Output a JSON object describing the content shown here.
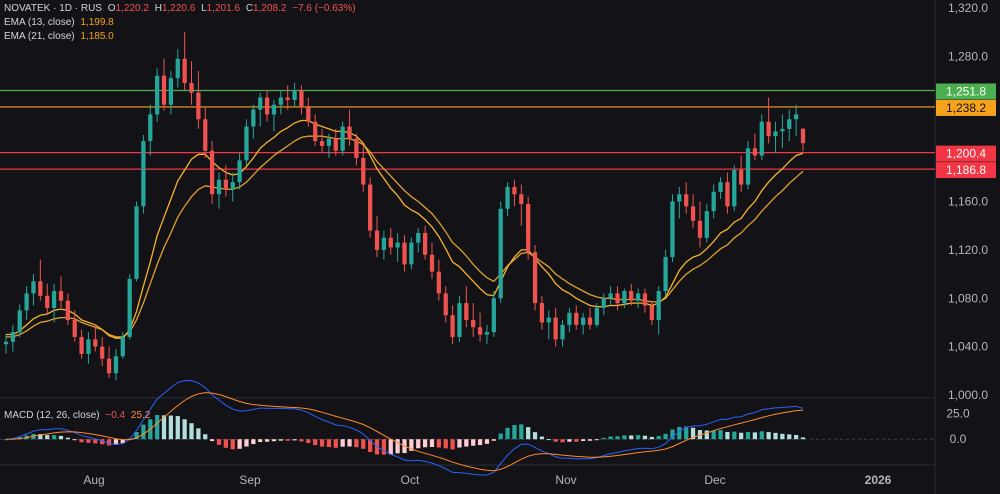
{
  "header": {
    "symbol": "NOVATEK · 1D · RUS",
    "o_label": "O",
    "o": "1,220.2",
    "h_label": "H",
    "h": "1,220.6",
    "l_label": "L",
    "l": "1,201.6",
    "c_label": "C",
    "c": "1,208.2",
    "change": "−7.6 (−0.63%)"
  },
  "ema13": {
    "label": "EMA (13, close)",
    "value": "1,199.8"
  },
  "ema21": {
    "label": "EMA (21, close)",
    "value": "1,185.0"
  },
  "macd": {
    "label": "MACD (12, 26, close)",
    "v1": "−0.4",
    "v2": "25.2"
  },
  "colors": {
    "background": "#131317",
    "up": "#26a69a",
    "down": "#ef5350",
    "ema13": "#f7a21b",
    "ema21": "#f7a21b",
    "macd_line": "#2962ff",
    "signal_line": "#ff8a2b",
    "grid": "#2a2e39",
    "hline_green": "#4caf50",
    "hline_orange": "#f7a21b",
    "hline_red": "#f23645"
  },
  "chart_data": {
    "type": "candlestick",
    "y_axis": {
      "min": 1000,
      "max": 1320,
      "ticks": [
        "1,000.0",
        "1,040.0",
        "1,080.0",
        "1,120.0",
        "1,160.0",
        "1,200.0",
        "1,240.0",
        "1,280.0",
        "1,320.0"
      ]
    },
    "x_axis": {
      "ticks": [
        "Aug",
        "Sep",
        "Oct",
        "Nov",
        "Dec",
        "2026"
      ]
    },
    "price_lines": [
      {
        "label": "1,251.8",
        "value": 1251.8,
        "color": "#4caf50"
      },
      {
        "label": "1,238.2",
        "value": 1238.2,
        "color": "#f7a21b"
      },
      {
        "label": "1,200.4",
        "value": 1200.4,
        "color": "#f23645"
      },
      {
        "label": "1,186.8",
        "value": 1186.8,
        "color": "#f23645"
      }
    ],
    "candles": [
      [
        1042,
        1050,
        1034,
        1044
      ],
      [
        1044,
        1058,
        1036,
        1052
      ],
      [
        1052,
        1075,
        1048,
        1070
      ],
      [
        1070,
        1090,
        1062,
        1084
      ],
      [
        1084,
        1100,
        1074,
        1094
      ],
      [
        1094,
        1112,
        1078,
        1082
      ],
      [
        1082,
        1092,
        1066,
        1072
      ],
      [
        1072,
        1092,
        1060,
        1086
      ],
      [
        1086,
        1098,
        1072,
        1078
      ],
      [
        1078,
        1084,
        1058,
        1062
      ],
      [
        1062,
        1070,
        1044,
        1048
      ],
      [
        1048,
        1054,
        1030,
        1034
      ],
      [
        1034,
        1052,
        1026,
        1046
      ],
      [
        1046,
        1058,
        1036,
        1040
      ],
      [
        1040,
        1048,
        1024,
        1030
      ],
      [
        1030,
        1040,
        1014,
        1018
      ],
      [
        1018,
        1038,
        1012,
        1032
      ],
      [
        1032,
        1052,
        1030,
        1048
      ],
      [
        1048,
        1100,
        1046,
        1096
      ],
      [
        1096,
        1160,
        1094,
        1156
      ],
      [
        1156,
        1215,
        1150,
        1210
      ],
      [
        1210,
        1240,
        1198,
        1232
      ],
      [
        1232,
        1270,
        1226,
        1264
      ],
      [
        1264,
        1278,
        1235,
        1240
      ],
      [
        1240,
        1268,
        1232,
        1262
      ],
      [
        1262,
        1286,
        1254,
        1278
      ],
      [
        1278,
        1300,
        1252,
        1258
      ],
      [
        1258,
        1276,
        1240,
        1250
      ],
      [
        1250,
        1268,
        1220,
        1228
      ],
      [
        1228,
        1238,
        1196,
        1202
      ],
      [
        1202,
        1210,
        1158,
        1166
      ],
      [
        1166,
        1184,
        1154,
        1178
      ],
      [
        1178,
        1190,
        1164,
        1170
      ],
      [
        1170,
        1184,
        1160,
        1176
      ],
      [
        1176,
        1200,
        1170,
        1194
      ],
      [
        1194,
        1228,
        1190,
        1222
      ],
      [
        1222,
        1240,
        1212,
        1236
      ],
      [
        1236,
        1250,
        1222,
        1246
      ],
      [
        1246,
        1252,
        1226,
        1232
      ],
      [
        1232,
        1244,
        1218,
        1240
      ],
      [
        1240,
        1252,
        1232,
        1246
      ],
      [
        1246,
        1256,
        1236,
        1244
      ],
      [
        1244,
        1258,
        1238,
        1252
      ],
      [
        1252,
        1256,
        1232,
        1238
      ],
      [
        1238,
        1246,
        1222,
        1226
      ],
      [
        1226,
        1232,
        1206,
        1210
      ],
      [
        1210,
        1220,
        1200,
        1206
      ],
      [
        1206,
        1216,
        1196,
        1212
      ],
      [
        1212,
        1220,
        1198,
        1202
      ],
      [
        1202,
        1226,
        1198,
        1222
      ],
      [
        1222,
        1236,
        1206,
        1212
      ],
      [
        1212,
        1216,
        1190,
        1196
      ],
      [
        1196,
        1206,
        1168,
        1174
      ],
      [
        1174,
        1180,
        1130,
        1136
      ],
      [
        1136,
        1148,
        1114,
        1120
      ],
      [
        1120,
        1136,
        1112,
        1130
      ],
      [
        1130,
        1138,
        1116,
        1122
      ],
      [
        1122,
        1134,
        1110,
        1126
      ],
      [
        1126,
        1132,
        1102,
        1108
      ],
      [
        1108,
        1130,
        1104,
        1126
      ],
      [
        1126,
        1138,
        1118,
        1134
      ],
      [
        1134,
        1140,
        1112,
        1116
      ],
      [
        1116,
        1126,
        1096,
        1102
      ],
      [
        1102,
        1112,
        1078,
        1084
      ],
      [
        1084,
        1090,
        1060,
        1066
      ],
      [
        1066,
        1074,
        1042,
        1048
      ],
      [
        1048,
        1082,
        1044,
        1076
      ],
      [
        1076,
        1090,
        1056,
        1062
      ],
      [
        1062,
        1076,
        1048,
        1056
      ],
      [
        1056,
        1068,
        1044,
        1050
      ],
      [
        1050,
        1058,
        1042,
        1052
      ],
      [
        1052,
        1086,
        1048,
        1080
      ],
      [
        1080,
        1160,
        1076,
        1154
      ],
      [
        1154,
        1176,
        1148,
        1172
      ],
      [
        1172,
        1178,
        1156,
        1166
      ],
      [
        1166,
        1174,
        1140,
        1158
      ],
      [
        1158,
        1164,
        1112,
        1118
      ],
      [
        1118,
        1124,
        1070,
        1076
      ],
      [
        1076,
        1082,
        1054,
        1060
      ],
      [
        1060,
        1070,
        1046,
        1064
      ],
      [
        1064,
        1072,
        1040,
        1046
      ],
      [
        1046,
        1062,
        1040,
        1058
      ],
      [
        1058,
        1072,
        1052,
        1068
      ],
      [
        1068,
        1074,
        1054,
        1058
      ],
      [
        1058,
        1068,
        1050,
        1064
      ],
      [
        1064,
        1072,
        1054,
        1058
      ],
      [
        1058,
        1076,
        1056,
        1072
      ],
      [
        1072,
        1084,
        1066,
        1080
      ],
      [
        1080,
        1090,
        1074,
        1084
      ],
      [
        1084,
        1090,
        1070,
        1076
      ],
      [
        1076,
        1088,
        1072,
        1086
      ],
      [
        1086,
        1092,
        1074,
        1078
      ],
      [
        1078,
        1088,
        1072,
        1084
      ],
      [
        1084,
        1088,
        1068,
        1074
      ],
      [
        1074,
        1078,
        1058,
        1062
      ],
      [
        1062,
        1090,
        1050,
        1086
      ],
      [
        1086,
        1120,
        1082,
        1114
      ],
      [
        1114,
        1166,
        1110,
        1160
      ],
      [
        1160,
        1172,
        1146,
        1166
      ],
      [
        1166,
        1176,
        1150,
        1156
      ],
      [
        1156,
        1166,
        1138,
        1144
      ],
      [
        1144,
        1160,
        1122,
        1130
      ],
      [
        1130,
        1158,
        1126,
        1152
      ],
      [
        1152,
        1174,
        1146,
        1168
      ],
      [
        1168,
        1180,
        1162,
        1176
      ],
      [
        1176,
        1184,
        1150,
        1156
      ],
      [
        1156,
        1190,
        1152,
        1186
      ],
      [
        1186,
        1198,
        1168,
        1174
      ],
      [
        1174,
        1210,
        1170,
        1204
      ],
      [
        1204,
        1216,
        1194,
        1198
      ],
      [
        1198,
        1232,
        1194,
        1226
      ],
      [
        1226,
        1246,
        1208,
        1214
      ],
      [
        1214,
        1226,
        1200,
        1218
      ],
      [
        1218,
        1232,
        1204,
        1220
      ],
      [
        1220,
        1236,
        1210,
        1228
      ],
      [
        1228,
        1240,
        1214,
        1232
      ],
      [
        1220.2,
        1220.6,
        1201.6,
        1208.2
      ]
    ],
    "ema13": [
      1050,
      1050,
      1053,
      1058,
      1063,
      1066,
      1067,
      1070,
      1071,
      1070,
      1067,
      1062,
      1060,
      1058,
      1054,
      1049,
      1047,
      1047,
      1054,
      1069,
      1090,
      1110,
      1132,
      1147,
      1162,
      1177,
      1186,
      1195,
      1199,
      1199,
      1193,
      1188,
      1184,
      1182,
      1183,
      1189,
      1196,
      1204,
      1209,
      1213,
      1218,
      1221,
      1225,
      1227,
      1227,
      1224,
      1222,
      1220,
      1218,
      1218,
      1217,
      1214,
      1208,
      1198,
      1187,
      1179,
      1171,
      1165,
      1157,
      1153,
      1150,
      1145,
      1139,
      1131,
      1121,
      1110,
      1106,
      1100,
      1094,
      1088,
      1083,
      1082,
      1094,
      1106,
      1114,
      1120,
      1120,
      1113,
      1106,
      1100,
      1092,
      1087,
      1084,
      1080,
      1077,
      1074,
      1073,
      1073,
      1074,
      1074,
      1075,
      1076,
      1076,
      1076,
      1074,
      1076,
      1081,
      1092,
      1103,
      1110,
      1114,
      1116,
      1121,
      1127,
      1134,
      1137,
      1143,
      1146,
      1154,
      1160,
      1169,
      1176,
      1182,
      1187,
      1193,
      1198,
      1199.8
    ],
    "ema21": [
      1048,
      1048,
      1050,
      1053,
      1057,
      1060,
      1061,
      1063,
      1064,
      1064,
      1063,
      1060,
      1058,
      1056,
      1054,
      1050,
      1048,
      1048,
      1052,
      1062,
      1076,
      1092,
      1108,
      1122,
      1134,
      1147,
      1156,
      1164,
      1170,
      1173,
      1172,
      1171,
      1170,
      1170,
      1172,
      1176,
      1182,
      1188,
      1193,
      1198,
      1202,
      1206,
      1210,
      1213,
      1214,
      1214,
      1214,
      1213,
      1212,
      1212,
      1212,
      1210,
      1207,
      1201,
      1193,
      1187,
      1181,
      1175,
      1169,
      1164,
      1160,
      1155,
      1150,
      1143,
      1135,
      1126,
      1121,
      1115,
      1108,
      1102,
      1097,
      1094,
      1100,
      1107,
      1112,
      1117,
      1118,
      1114,
      1110,
      1106,
      1100,
      1096,
      1092,
      1089,
      1086,
      1083,
      1081,
      1080,
      1080,
      1079,
      1079,
      1079,
      1079,
      1078,
      1077,
      1077,
      1080,
      1087,
      1094,
      1100,
      1104,
      1107,
      1111,
      1116,
      1121,
      1124,
      1130,
      1134,
      1140,
      1145,
      1152,
      1158,
      1164,
      1169,
      1175,
      1180,
      1185.0
    ],
    "macd_axis": {
      "ticks": [
        "25.0",
        "0.0"
      ],
      "min": -22,
      "max": 34
    }
  }
}
